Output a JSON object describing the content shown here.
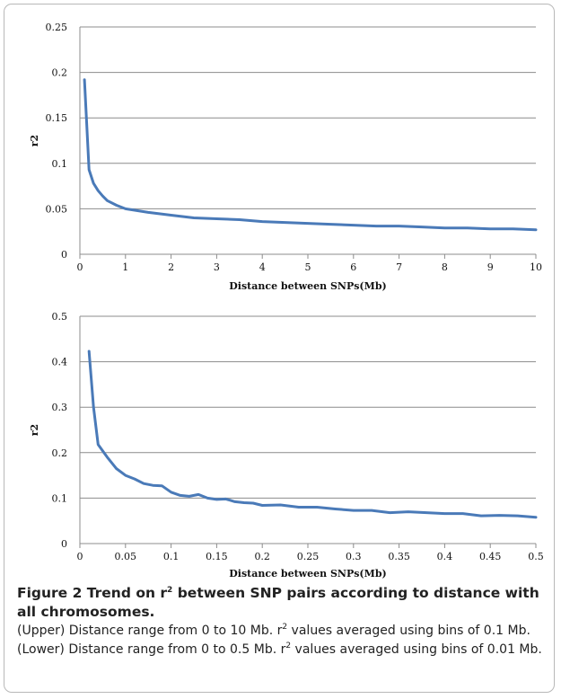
{
  "chart_data": [
    {
      "type": "line",
      "xlabel": "Distance between SNPs(Mb)",
      "ylabel": "r2",
      "xlim": [
        0,
        10
      ],
      "ylim": [
        0,
        0.25
      ],
      "x_ticks": [
        "0",
        "1",
        "2",
        "3",
        "4",
        "5",
        "6",
        "7",
        "8",
        "9",
        "10"
      ],
      "y_ticks": [
        "0",
        "0.05",
        "0.1",
        "0.15",
        "0.2",
        "0.25"
      ],
      "grid": "horizontal",
      "color": "#4a7ab8",
      "x": [
        0.1,
        0.2,
        0.3,
        0.4,
        0.5,
        0.6,
        0.8,
        1.0,
        1.5,
        2.0,
        2.5,
        3.0,
        3.5,
        4.0,
        4.5,
        5.0,
        5.5,
        6.0,
        6.5,
        7.0,
        7.5,
        8.0,
        8.5,
        9.0,
        9.5,
        10.0
      ],
      "y": [
        0.192,
        0.093,
        0.078,
        0.07,
        0.064,
        0.059,
        0.054,
        0.05,
        0.046,
        0.043,
        0.04,
        0.039,
        0.038,
        0.036,
        0.035,
        0.034,
        0.033,
        0.032,
        0.031,
        0.031,
        0.03,
        0.029,
        0.029,
        0.028,
        0.028,
        0.027
      ]
    },
    {
      "type": "line",
      "xlabel": "Distance between SNPs(Mb)",
      "ylabel": "r2",
      "xlim": [
        0,
        0.5
      ],
      "ylim": [
        0,
        0.5
      ],
      "x_ticks": [
        "0",
        "0.05",
        "0.1",
        "0.15",
        "0.2",
        "0.25",
        "0.3",
        "0.35",
        "0.4",
        "0.45",
        "0.5"
      ],
      "y_ticks": [
        "0",
        "0.1",
        "0.2",
        "0.3",
        "0.4",
        "0.5"
      ],
      "grid": "horizontal",
      "color": "#4a7ab8",
      "x": [
        0.01,
        0.015,
        0.02,
        0.03,
        0.04,
        0.05,
        0.06,
        0.07,
        0.08,
        0.09,
        0.1,
        0.11,
        0.12,
        0.13,
        0.14,
        0.15,
        0.16,
        0.17,
        0.18,
        0.19,
        0.2,
        0.22,
        0.24,
        0.26,
        0.28,
        0.3,
        0.32,
        0.34,
        0.36,
        0.38,
        0.4,
        0.42,
        0.44,
        0.46,
        0.48,
        0.5
      ],
      "y": [
        0.423,
        0.3,
        0.218,
        0.19,
        0.165,
        0.15,
        0.142,
        0.132,
        0.128,
        0.127,
        0.113,
        0.106,
        0.104,
        0.108,
        0.1,
        0.097,
        0.098,
        0.092,
        0.09,
        0.089,
        0.084,
        0.085,
        0.08,
        0.08,
        0.076,
        0.073,
        0.073,
        0.068,
        0.07,
        0.068,
        0.066,
        0.066,
        0.061,
        0.062,
        0.061,
        0.058
      ]
    }
  ],
  "caption": {
    "title_pre": "Figure 2 Trend on r",
    "title_sup": "2",
    "title_post": " between SNP pairs according to distance with all chromosomes.",
    "body_1": " (Upper) Distance range from 0 to 10 Mb. r",
    "body_sup1": "2",
    "body_2": " values averaged using bins of 0.1 Mb. (Lower) Distance range from 0 to 0.5 Mb. r",
    "body_sup2": "2",
    "body_3": " values averaged using bins of 0.01 Mb."
  }
}
